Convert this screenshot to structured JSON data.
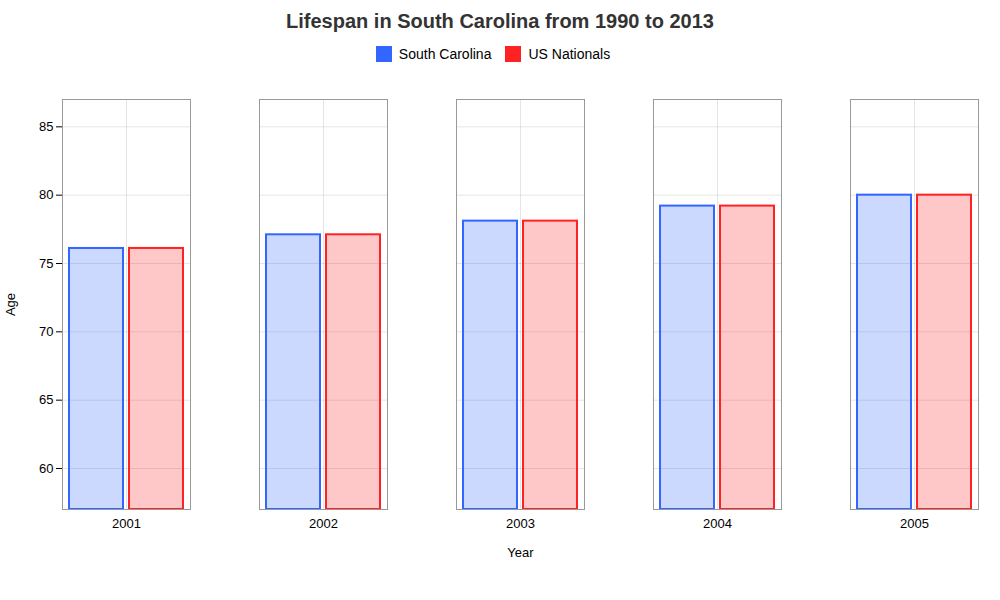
{
  "chart_data": {
    "type": "bar",
    "title": "Lifespan in South Carolina from 1990 to 2013",
    "x_label": "Year",
    "y_label": "Age",
    "categories": [
      2001,
      2002,
      2003,
      2004,
      2005
    ],
    "series": [
      {
        "name": "South Carolina",
        "color": "#3366ff",
        "values": [
          76.1,
          77.1,
          78.1,
          79.2,
          80.0
        ]
      },
      {
        "name": "US Nationals",
        "color": "#ff2222",
        "values": [
          76.1,
          77.1,
          78.1,
          79.2,
          80.0
        ]
      }
    ],
    "ylim": [
      57,
      87
    ],
    "yticks": [
      60,
      65,
      70,
      75,
      80,
      85
    ],
    "grid": true,
    "legend": "top"
  }
}
